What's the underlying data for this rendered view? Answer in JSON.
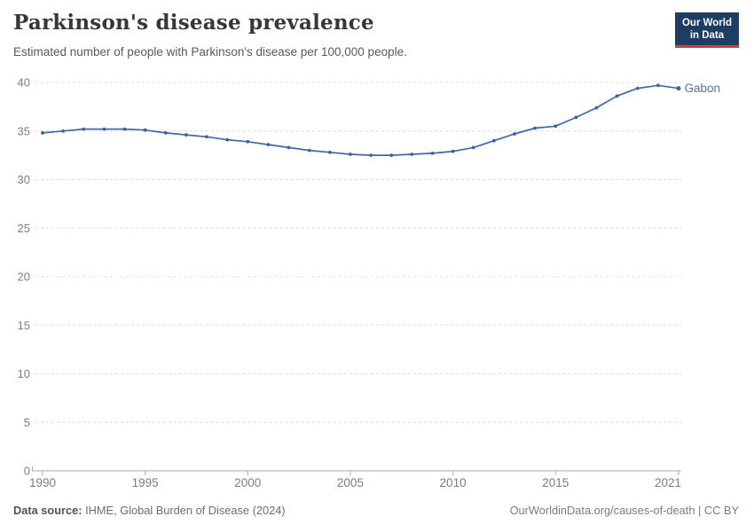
{
  "header": {
    "title": "Parkinson's disease prevalence",
    "subtitle": "Estimated number of people with Parkinson's disease per 100,000 people.",
    "logo": {
      "line1": "Our World",
      "line2": "in Data"
    }
  },
  "chart_data": {
    "type": "line",
    "title": "Parkinson's disease prevalence",
    "subtitle": "Estimated number of people with Parkinson's disease per 100,000 people.",
    "unit": "per 100,000 people",
    "x": [
      1990,
      1991,
      1992,
      1993,
      1994,
      1995,
      1996,
      1997,
      1998,
      1999,
      2000,
      2001,
      2002,
      2003,
      2004,
      2005,
      2006,
      2007,
      2008,
      2009,
      2010,
      2011,
      2012,
      2013,
      2014,
      2015,
      2016,
      2017,
      2018,
      2019,
      2020,
      2021
    ],
    "series": [
      {
        "name": "Gabon",
        "values": [
          34.8,
          35.0,
          35.2,
          35.2,
          35.2,
          35.1,
          34.8,
          34.6,
          34.4,
          34.1,
          33.9,
          33.6,
          33.3,
          33.0,
          32.8,
          32.6,
          32.5,
          32.5,
          32.6,
          32.7,
          32.9,
          33.3,
          34.0,
          34.7,
          35.3,
          35.5,
          36.4,
          37.4,
          38.6,
          39.4,
          39.7,
          39.4
        ]
      }
    ],
    "x_ticks": [
      1990,
      1995,
      2000,
      2005,
      2010,
      2015,
      2021
    ],
    "y_ticks": [
      0,
      5,
      10,
      15,
      20,
      25,
      30,
      35,
      40
    ],
    "xlim": [
      1990,
      2021
    ],
    "ylim": [
      0,
      40
    ],
    "grid": "horizontal-dashed",
    "legend_position": "end-of-line",
    "end_label": "Gabon"
  },
  "footer": {
    "source_label": "Data source:",
    "source_text": "IHME, Global Burden of Disease (2024)",
    "link_text": "OurWorldinData.org/causes-of-death | CC BY"
  },
  "colors": {
    "line": "#4269a5",
    "dot": "#3e609f",
    "entity_label": "#4f74a8",
    "grid": "#dcdcdc",
    "axis": "#aaaaaa",
    "tick_label": "#7d7d7d",
    "title": "#373737",
    "subtitle": "#595959",
    "logo_bg": "#1d3d63",
    "logo_accent": "#d63b3f"
  }
}
